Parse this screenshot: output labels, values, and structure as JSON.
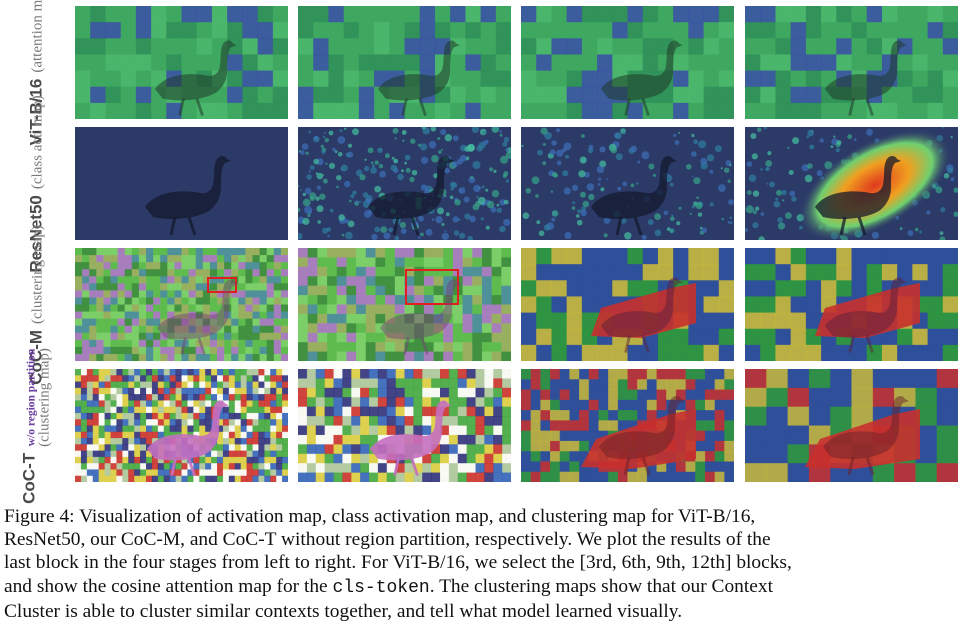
{
  "rows": [
    {
      "model": "ViT-B/16",
      "sub": "(attention map)"
    },
    {
      "model": "ResNet50",
      "sub": "(class act. map)"
    },
    {
      "model": "CoC-M",
      "sub": "(clustering map)"
    },
    {
      "model": "CoC-T",
      "sub_top": "w/o region partition",
      "sub": "(clustering map)"
    }
  ],
  "figure_label": "Figure 4:",
  "caption_lines": [
    "Visualization of activation map, class activation map, and clustering map for ViT-B/16,",
    "ResNet50, our CoC-M, and CoC-T without region partition, respectively. We plot the results of the",
    "last block in the four stages from left to right. For ViT-B/16, we select the [3rd, 6th, 9th, 12th] blocks,",
    "and show the cosine attention map for the",
    "cls-token",
    ". The clustering maps show that our Context",
    "Cluster is able to cluster similar contexts together, and tell what model learned visually."
  ],
  "colors": {
    "vit_green": "#3fa860",
    "vit_blue": "#3b4fa8",
    "resnet_base": "#2c3a68",
    "cam_red": "#e03a1e",
    "cluster_yellow": "#c9b93b",
    "cluster_blue": "#2f4f9a",
    "cluster_red": "#c8302e",
    "cluster_green": "#2f9a3a",
    "goose_pink": "#c46fc0"
  }
}
